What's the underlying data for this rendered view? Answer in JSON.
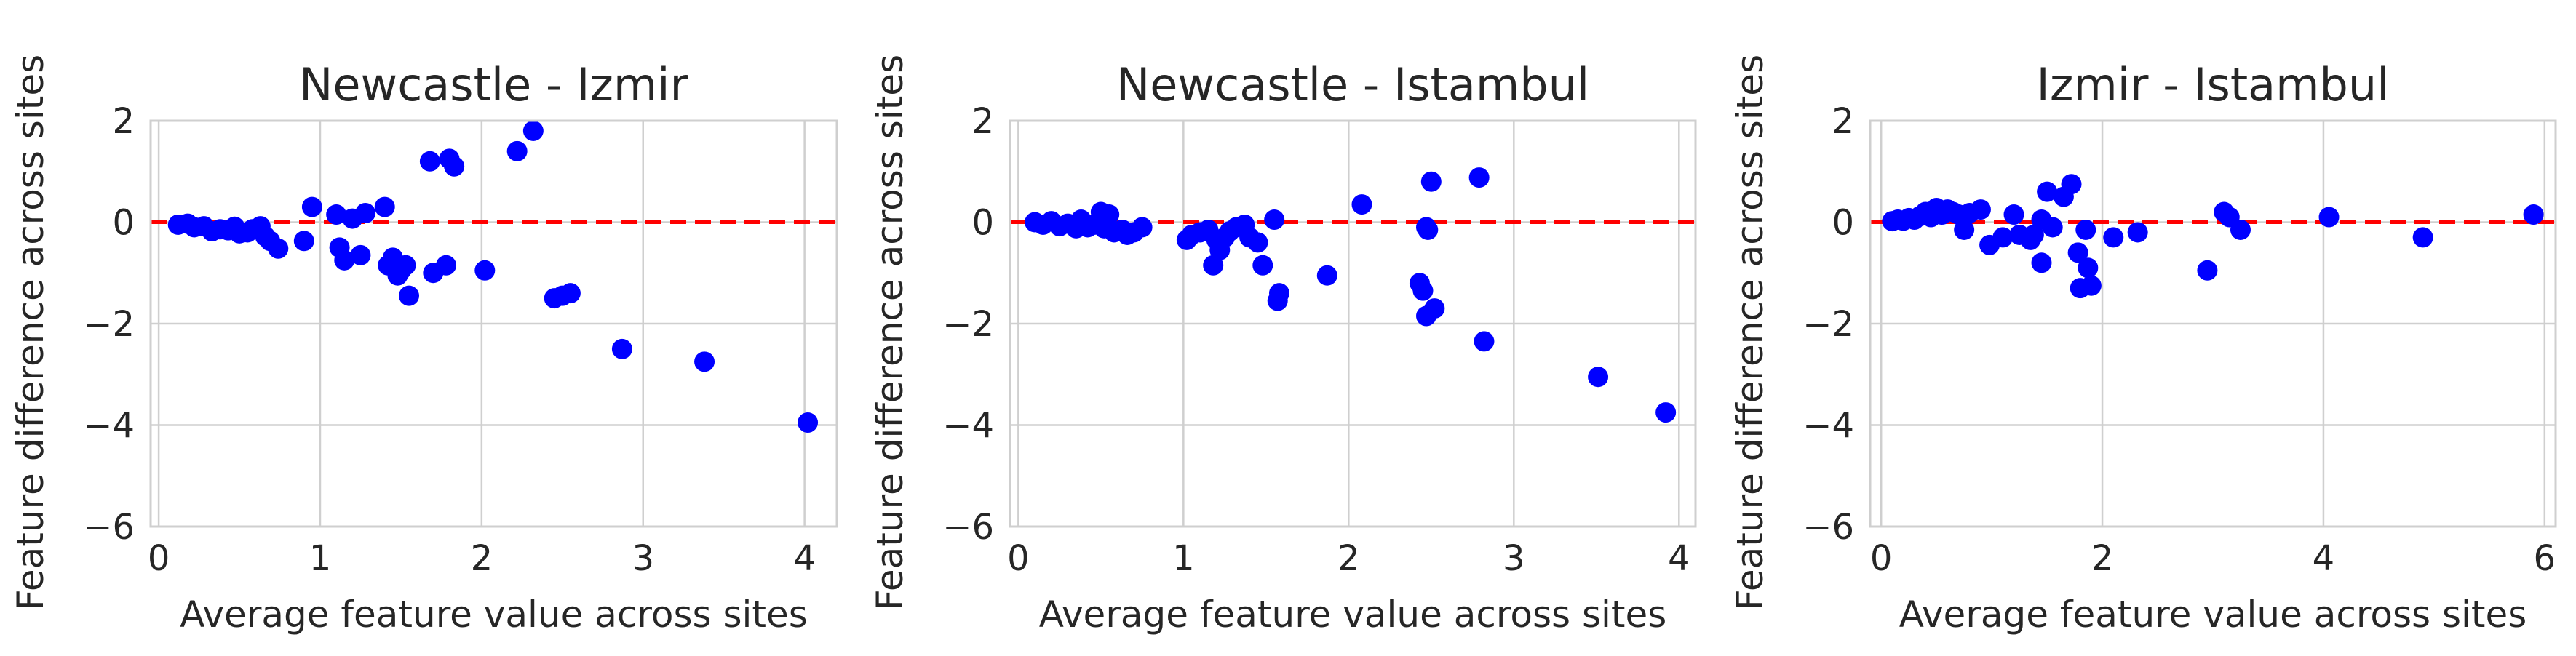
{
  "chart_data": [
    {
      "type": "scatter",
      "title": "Newcastle - Izmir",
      "xlabel": "Average feature value across sites",
      "ylabel": "Feature difference across sites",
      "xlim": [
        -0.05,
        4.2
      ],
      "ylim": [
        -6,
        2
      ],
      "xticks": [
        0,
        1,
        2,
        3,
        4
      ],
      "yticks": [
        -6,
        -4,
        -2,
        0,
        2
      ],
      "grid": true,
      "reference_line": {
        "y": 0,
        "color": "#ff0000",
        "style": "dashed"
      },
      "marker_color": "#0000ff",
      "points": [
        [
          0.12,
          -0.05
        ],
        [
          0.18,
          -0.03
        ],
        [
          0.22,
          -0.1
        ],
        [
          0.28,
          -0.08
        ],
        [
          0.33,
          -0.18
        ],
        [
          0.38,
          -0.14
        ],
        [
          0.43,
          -0.16
        ],
        [
          0.47,
          -0.09
        ],
        [
          0.5,
          -0.22
        ],
        [
          0.55,
          -0.2
        ],
        [
          0.58,
          -0.14
        ],
        [
          0.63,
          -0.08
        ],
        [
          0.66,
          -0.28
        ],
        [
          0.69,
          -0.37
        ],
        [
          0.74,
          -0.52
        ],
        [
          0.9,
          -0.37
        ],
        [
          0.95,
          0.3
        ],
        [
          1.1,
          0.15
        ],
        [
          1.12,
          -0.5
        ],
        [
          1.15,
          -0.75
        ],
        [
          1.2,
          0.07
        ],
        [
          1.25,
          -0.65
        ],
        [
          1.28,
          0.18
        ],
        [
          1.4,
          0.3
        ],
        [
          1.42,
          -0.85
        ],
        [
          1.45,
          -0.7
        ],
        [
          1.48,
          -1.05
        ],
        [
          1.5,
          -0.95
        ],
        [
          1.53,
          -0.85
        ],
        [
          1.55,
          -1.45
        ],
        [
          1.68,
          1.2
        ],
        [
          1.7,
          -1.0
        ],
        [
          1.78,
          -0.85
        ],
        [
          1.8,
          1.25
        ],
        [
          1.83,
          1.1
        ],
        [
          2.02,
          -0.95
        ],
        [
          2.22,
          1.4
        ],
        [
          2.32,
          1.8
        ],
        [
          2.45,
          -1.5
        ],
        [
          2.5,
          -1.45
        ],
        [
          2.55,
          -1.4
        ],
        [
          2.87,
          -2.5
        ],
        [
          3.38,
          -2.75
        ],
        [
          4.02,
          -3.95
        ]
      ]
    },
    {
      "type": "scatter",
      "title": "Newcastle - Istambul",
      "xlabel": "Average feature value across sites",
      "ylabel": "Feature difference across sites",
      "xlim": [
        -0.05,
        4.1
      ],
      "ylim": [
        -6,
        2
      ],
      "xticks": [
        0,
        1,
        2,
        3,
        4
      ],
      "yticks": [
        -6,
        -4,
        -2,
        0,
        2
      ],
      "grid": true,
      "reference_line": {
        "y": 0,
        "color": "#ff0000",
        "style": "dashed"
      },
      "marker_color": "#0000ff",
      "points": [
        [
          0.1,
          0.0
        ],
        [
          0.15,
          -0.05
        ],
        [
          0.2,
          0.02
        ],
        [
          0.25,
          -0.08
        ],
        [
          0.3,
          -0.03
        ],
        [
          0.35,
          -0.12
        ],
        [
          0.38,
          0.05
        ],
        [
          0.42,
          -0.1
        ],
        [
          0.46,
          -0.05
        ],
        [
          0.5,
          0.2
        ],
        [
          0.52,
          -0.12
        ],
        [
          0.55,
          0.15
        ],
        [
          0.58,
          -0.2
        ],
        [
          0.63,
          -0.15
        ],
        [
          0.66,
          -0.25
        ],
        [
          0.7,
          -0.2
        ],
        [
          0.75,
          -0.1
        ],
        [
          1.02,
          -0.35
        ],
        [
          1.05,
          -0.25
        ],
        [
          1.1,
          -0.2
        ],
        [
          1.15,
          -0.15
        ],
        [
          1.18,
          -0.85
        ],
        [
          1.2,
          -0.35
        ],
        [
          1.22,
          -0.55
        ],
        [
          1.25,
          -0.3
        ],
        [
          1.28,
          -0.18
        ],
        [
          1.32,
          -0.1
        ],
        [
          1.37,
          -0.05
        ],
        [
          1.4,
          -0.3
        ],
        [
          1.45,
          -0.4
        ],
        [
          1.48,
          -0.85
        ],
        [
          1.55,
          0.05
        ],
        [
          1.57,
          -1.55
        ],
        [
          1.58,
          -1.4
        ],
        [
          1.87,
          -1.05
        ],
        [
          2.08,
          0.35
        ],
        [
          2.43,
          -1.2
        ],
        [
          2.45,
          -1.35
        ],
        [
          2.47,
          -1.85
        ],
        [
          2.47,
          -0.1
        ],
        [
          2.48,
          -0.15
        ],
        [
          2.5,
          0.8
        ],
        [
          2.52,
          -1.7
        ],
        [
          2.79,
          0.88
        ],
        [
          2.82,
          -2.35
        ],
        [
          3.51,
          -3.05
        ],
        [
          3.92,
          -3.75
        ]
      ]
    },
    {
      "type": "scatter",
      "title": "Izmir - Istambul",
      "xlabel": "Average feature value across sites",
      "ylabel": "Feature difference across sites",
      "xlim": [
        -0.1,
        6.1
      ],
      "ylim": [
        -6,
        2
      ],
      "xticks": [
        0,
        2,
        4,
        6
      ],
      "yticks": [
        -6,
        -4,
        -2,
        0,
        2
      ],
      "grid": true,
      "reference_line": {
        "y": 0,
        "color": "#ff0000",
        "style": "dashed"
      },
      "marker_color": "#0000ff",
      "points": [
        [
          0.1,
          0.02
        ],
        [
          0.15,
          0.05
        ],
        [
          0.2,
          0.03
        ],
        [
          0.25,
          0.08
        ],
        [
          0.3,
          0.05
        ],
        [
          0.35,
          0.12
        ],
        [
          0.4,
          0.2
        ],
        [
          0.45,
          0.1
        ],
        [
          0.5,
          0.28
        ],
        [
          0.55,
          0.15
        ],
        [
          0.6,
          0.25
        ],
        [
          0.65,
          0.2
        ],
        [
          0.7,
          0.15
        ],
        [
          0.75,
          -0.15
        ],
        [
          0.8,
          0.18
        ],
        [
          0.9,
          0.25
        ],
        [
          0.98,
          -0.45
        ],
        [
          1.1,
          -0.3
        ],
        [
          1.2,
          0.15
        ],
        [
          1.25,
          -0.25
        ],
        [
          1.35,
          -0.35
        ],
        [
          1.38,
          -0.25
        ],
        [
          1.45,
          0.05
        ],
        [
          1.45,
          -0.8
        ],
        [
          1.5,
          0.6
        ],
        [
          1.55,
          -0.1
        ],
        [
          1.65,
          0.5
        ],
        [
          1.72,
          0.75
        ],
        [
          1.78,
          -0.6
        ],
        [
          1.8,
          -1.3
        ],
        [
          1.85,
          -0.15
        ],
        [
          1.87,
          -0.9
        ],
        [
          1.9,
          -1.25
        ],
        [
          2.1,
          -0.3
        ],
        [
          2.32,
          -0.2
        ],
        [
          2.95,
          -0.95
        ],
        [
          3.1,
          0.2
        ],
        [
          3.15,
          0.1
        ],
        [
          3.25,
          -0.15
        ],
        [
          4.05,
          0.1
        ],
        [
          4.9,
          -0.3
        ],
        [
          5.9,
          0.15
        ]
      ]
    }
  ]
}
